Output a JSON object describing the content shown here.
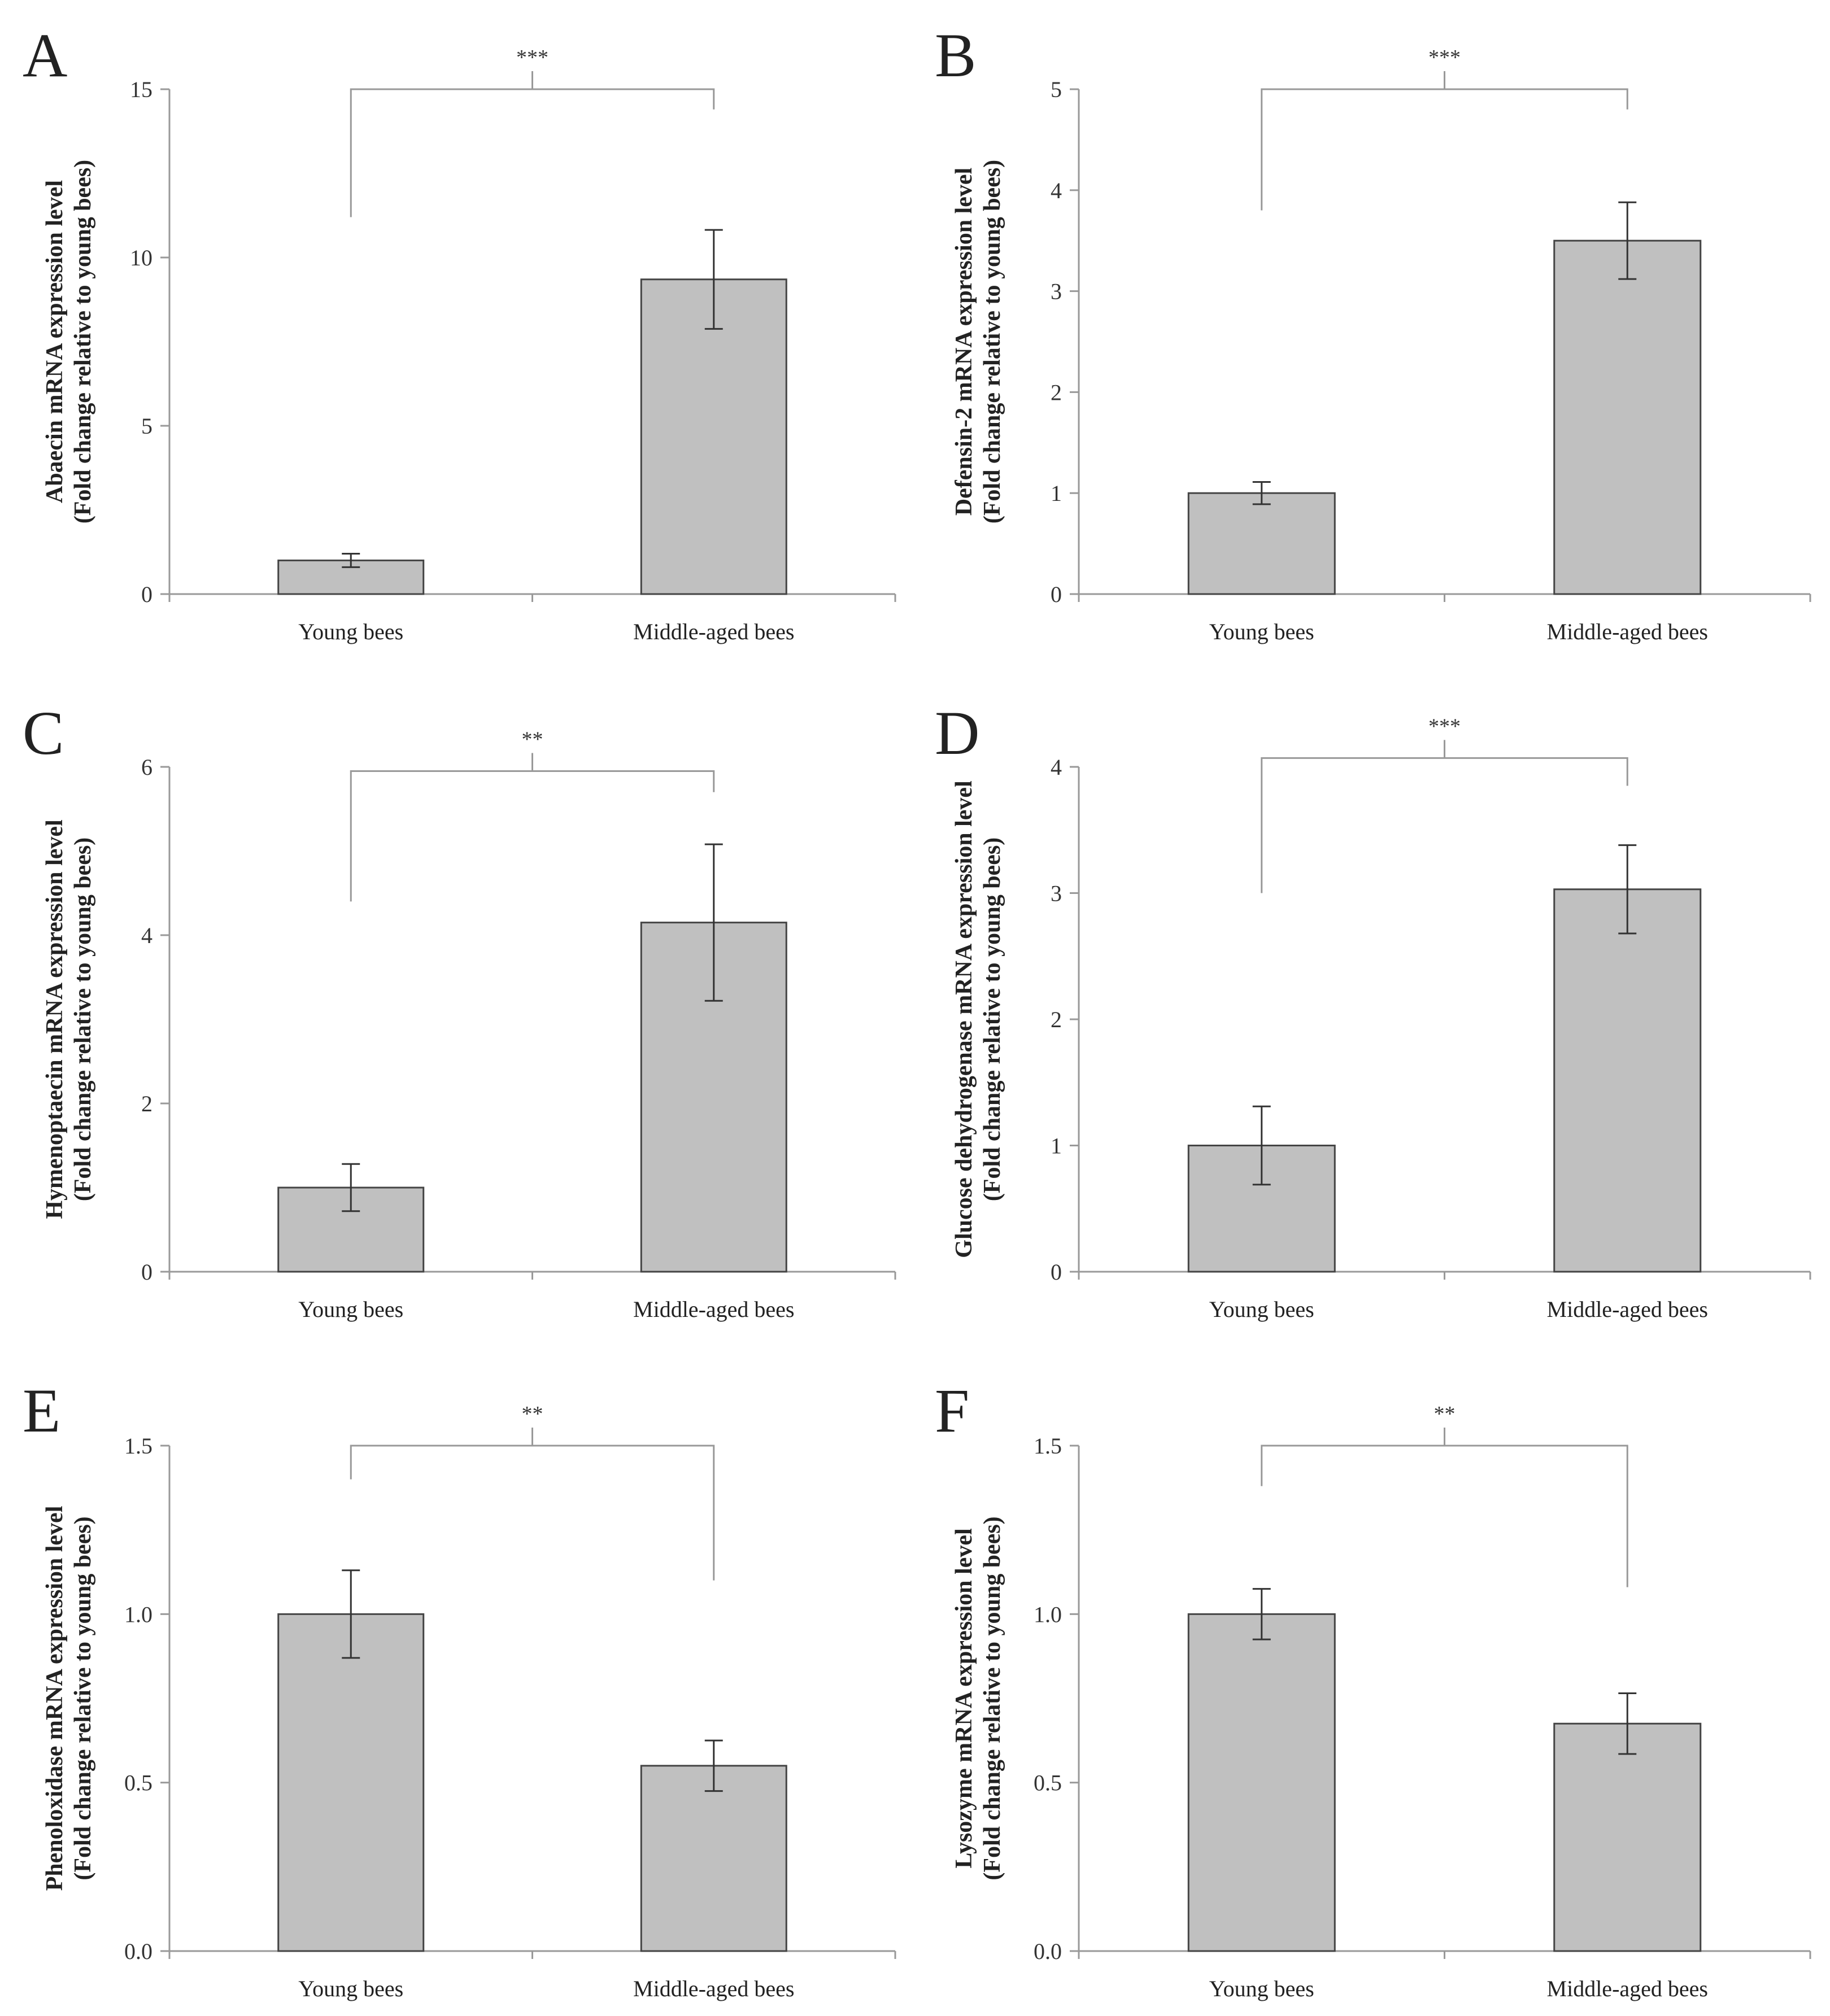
{
  "figure": {
    "description_id": "bee-immune-gene-expression"
  },
  "colors": {
    "bar_fill": "#c0c0c0",
    "bar_stroke": "#444444",
    "axis": "#999999",
    "error": "#333333",
    "bracket": "#999999"
  },
  "chart_data": [
    {
      "type": "bar",
      "panel": "A",
      "categories": [
        "Young bees",
        "Middle-aged bees"
      ],
      "values": [
        1.0,
        9.35
      ],
      "errors": [
        0.2,
        1.47
      ],
      "ylim": [
        0,
        15
      ],
      "yticks": [
        "0",
        "5",
        "10",
        "15"
      ],
      "ytick_values": [
        0,
        5,
        10,
        15
      ],
      "ylabel": [
        "Abaecin mRNA expression level",
        "(Fold change relative to young bees)"
      ],
      "significance": "***",
      "bracket_left_end": 11.2,
      "bracket_right_end": 14.4,
      "bracket_top": 15.0
    },
    {
      "type": "bar",
      "panel": "B",
      "categories": [
        "Young bees",
        "Middle-aged bees"
      ],
      "values": [
        1.0,
        3.5
      ],
      "errors": [
        0.11,
        0.38
      ],
      "ylim": [
        0,
        5
      ],
      "yticks": [
        "0",
        "1",
        "2",
        "3",
        "4",
        "5"
      ],
      "ytick_values": [
        0,
        1,
        2,
        3,
        4,
        5
      ],
      "ylabel": [
        "Defensin-2 mRNA expression level",
        "(Fold change relative to young bees)"
      ],
      "significance": "***",
      "bracket_left_end": 3.8,
      "bracket_right_end": 4.8,
      "bracket_top": 5.0
    },
    {
      "type": "bar",
      "panel": "C",
      "categories": [
        "Young bees",
        "Middle-aged bees"
      ],
      "values": [
        1.0,
        4.15
      ],
      "errors": [
        0.28,
        0.93
      ],
      "ylim": [
        0,
        6
      ],
      "yticks": [
        "0",
        "2",
        "4",
        "6"
      ],
      "ytick_values": [
        0,
        2,
        4,
        6
      ],
      "ylabel": [
        "Hymenoptaecin mRNA expression level",
        "(Fold change relative to young bees)"
      ],
      "significance": "**",
      "bracket_left_end": 4.4,
      "bracket_right_end": 5.7,
      "bracket_top": 5.95
    },
    {
      "type": "bar",
      "panel": "D",
      "categories": [
        "Young bees",
        "Middle-aged bees"
      ],
      "values": [
        1.0,
        3.03
      ],
      "errors": [
        0.31,
        0.35
      ],
      "ylim": [
        0,
        4
      ],
      "yticks": [
        "0",
        "1",
        "2",
        "3",
        "4"
      ],
      "ytick_values": [
        0,
        1,
        2,
        3,
        4
      ],
      "ylabel": [
        "Glucose dehydrogenase mRNA expression level",
        "(Fold change relative to young bees)"
      ],
      "significance": "***",
      "bracket_left_end": 3.0,
      "bracket_right_end": 3.85,
      "bracket_top": 4.07
    },
    {
      "type": "bar",
      "panel": "E",
      "categories": [
        "Young bees",
        "Middle-aged bees"
      ],
      "values": [
        1.0,
        0.55
      ],
      "errors": [
        0.13,
        0.075
      ],
      "ylim": [
        0,
        1.5
      ],
      "yticks": [
        "0.0",
        "0.5",
        "1.0",
        "1.5"
      ],
      "ytick_values": [
        0,
        0.5,
        1.0,
        1.5
      ],
      "ylabel": [
        "Phenoloxidase mRNA expression level",
        "(Fold change relative to young bees)"
      ],
      "significance": "**",
      "bracket_left_end": 1.4,
      "bracket_right_end": 1.1,
      "bracket_top": 1.5
    },
    {
      "type": "bar",
      "panel": "F",
      "categories": [
        "Young bees",
        "Middle-aged bees"
      ],
      "values": [
        1.0,
        0.675
      ],
      "errors": [
        0.075,
        0.09
      ],
      "ylim": [
        0,
        1.5
      ],
      "yticks": [
        "0.0",
        "0.5",
        "1.0",
        "1.5"
      ],
      "ytick_values": [
        0,
        0.5,
        1.0,
        1.5
      ],
      "ylabel": [
        "Lysozyme mRNA expression level",
        "(Fold change relative to young bees)"
      ],
      "significance": "**",
      "bracket_left_end": 1.38,
      "bracket_right_end": 1.08,
      "bracket_top": 1.5
    }
  ]
}
